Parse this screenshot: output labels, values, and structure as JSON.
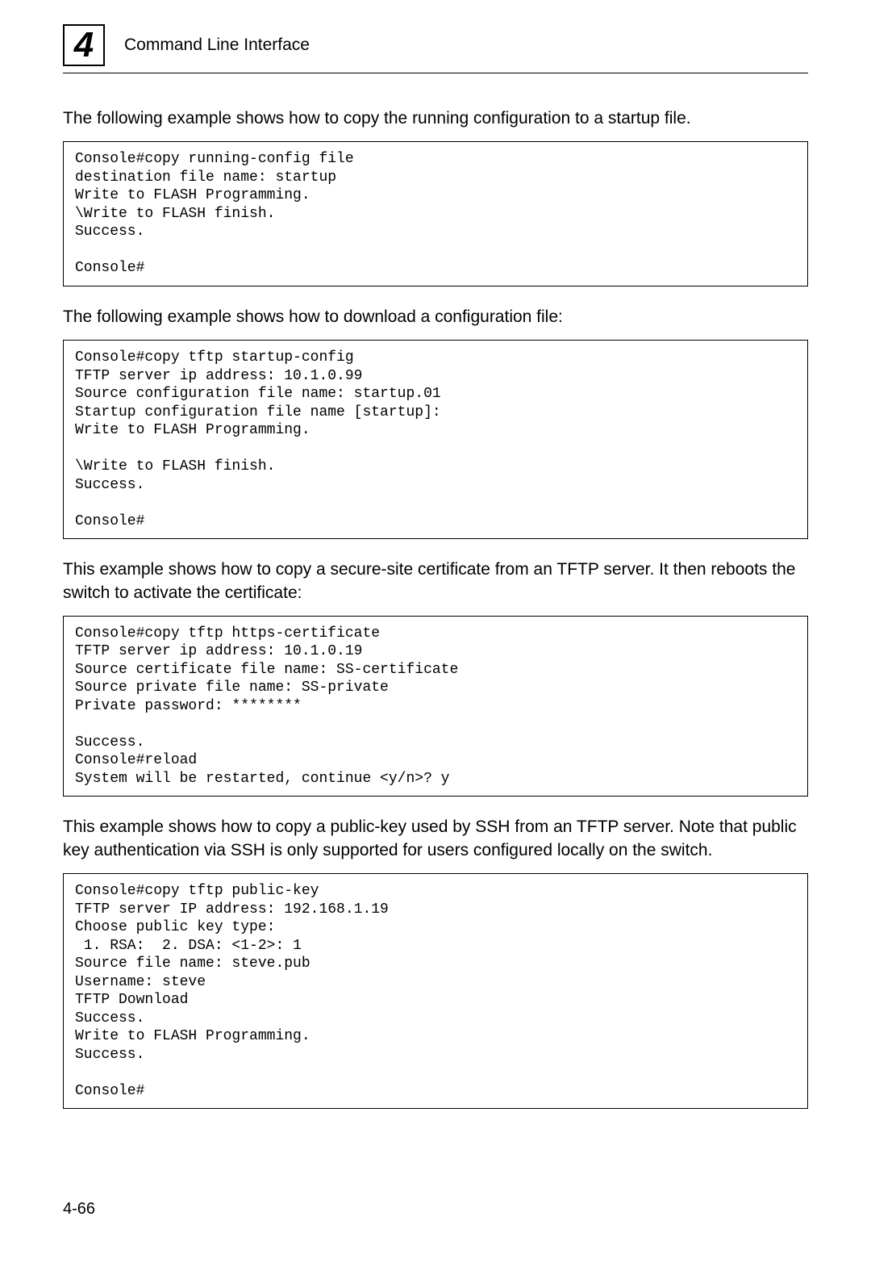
{
  "chapter": {
    "number": "4",
    "title": "Command Line Interface"
  },
  "paragraphs": {
    "p1": "The following example shows how to copy the running configuration to a startup file.",
    "p2": "The following example shows how to download a configuration file:",
    "p3": "This example shows how to copy a secure-site certificate from an TFTP server. It then reboots the switch to activate the certificate:",
    "p4": "This example shows how to copy a public-key used by SSH from an TFTP server. Note that public key authentication via SSH is only supported for users configured locally on the switch."
  },
  "code": {
    "block1": "Console#copy running-config file\ndestination file name: startup\nWrite to FLASH Programming.\n\\Write to FLASH finish.\nSuccess.\n\nConsole#",
    "block2": "Console#copy tftp startup-config\nTFTP server ip address: 10.1.0.99\nSource configuration file name: startup.01\nStartup configuration file name [startup]:\nWrite to FLASH Programming.\n\n\\Write to FLASH finish.\nSuccess.\n\nConsole#",
    "block3": "Console#copy tftp https-certificate\nTFTP server ip address: 10.1.0.19\nSource certificate file name: SS-certificate\nSource private file name: SS-private\nPrivate password: ********\n\nSuccess.\nConsole#reload\nSystem will be restarted, continue <y/n>? y",
    "block4": "Console#copy tftp public-key\nTFTP server IP address: 192.168.1.19\nChoose public key type:\n 1. RSA:  2. DSA: <1-2>: 1\nSource file name: steve.pub\nUsername: steve\nTFTP Download\nSuccess.\nWrite to FLASH Programming.\nSuccess.\n\nConsole#"
  },
  "pageNumber": "4-66"
}
